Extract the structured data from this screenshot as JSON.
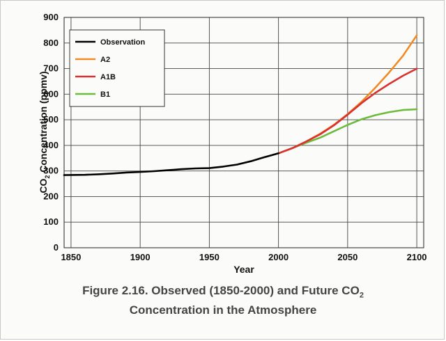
{
  "chart_data": {
    "type": "line",
    "xlabel": "Year",
    "ylabel_prefix": "CO",
    "ylabel_sub": "2",
    "ylabel_suffix": " Concentration (ppmv)",
    "xlim": [
      1845,
      2105
    ],
    "ylim": [
      0,
      900
    ],
    "xticks": [
      1850,
      1900,
      1950,
      2000,
      2050,
      2100
    ],
    "yticks": [
      0,
      100,
      200,
      300,
      400,
      500,
      600,
      700,
      800,
      900
    ],
    "grid": true,
    "legend_position": "top-left",
    "series": [
      {
        "name": "Observation",
        "color": "#000000",
        "x": [
          1845,
          1860,
          1870,
          1880,
          1890,
          1900,
          1910,
          1920,
          1930,
          1940,
          1950,
          1960,
          1970,
          1980,
          1990,
          2000
        ],
        "y": [
          284,
          285,
          287,
          290,
          294,
          296,
          299,
          303,
          307,
          310,
          311,
          317,
          325,
          338,
          354,
          369
        ]
      },
      {
        "name": "A2",
        "color": "#f08a24",
        "x": [
          2000,
          2010,
          2020,
          2030,
          2040,
          2050,
          2060,
          2070,
          2080,
          2090,
          2100
        ],
        "y": [
          369,
          389,
          415,
          445,
          480,
          522,
          570,
          625,
          685,
          750,
          830
        ]
      },
      {
        "name": "A1B",
        "color": "#d93030",
        "x": [
          2000,
          2010,
          2020,
          2030,
          2040,
          2050,
          2060,
          2070,
          2080,
          2090,
          2100
        ],
        "y": [
          369,
          389,
          415,
          443,
          478,
          520,
          565,
          605,
          640,
          672,
          700
        ]
      },
      {
        "name": "B1",
        "color": "#6cbb3c",
        "x": [
          2000,
          2010,
          2020,
          2030,
          2040,
          2050,
          2060,
          2070,
          2080,
          2090,
          2100
        ],
        "y": [
          369,
          389,
          410,
          430,
          455,
          480,
          502,
          518,
          530,
          538,
          541
        ]
      }
    ]
  },
  "caption": {
    "line1_prefix": "Figure 2.16. Observed (1850-2000) and Future CO",
    "line1_sub": "2",
    "line2": "Concentration in the Atmosphere"
  }
}
